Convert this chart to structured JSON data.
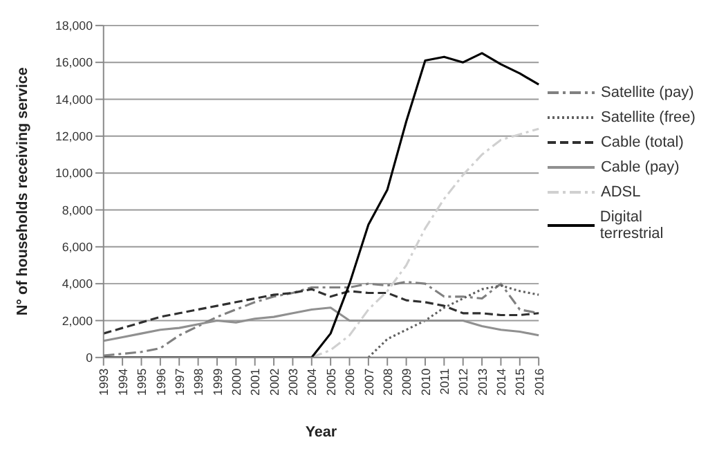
{
  "chart_data": {
    "type": "line",
    "xlabel": "Year",
    "ylabel": "N° of households receiving service",
    "categories": [
      "1993",
      "1994",
      "1995",
      "1996",
      "1997",
      "1998",
      "1999",
      "2000",
      "2001",
      "2002",
      "2003",
      "2004",
      "2005",
      "2006",
      "2007",
      "2008",
      "2009",
      "2010",
      "2011",
      "2012",
      "2013",
      "2014",
      "2015",
      "2016"
    ],
    "series": [
      {
        "name": "Satellite (pay)",
        "color": "#808080",
        "line_style": "dashdot",
        "values": [
          100,
          200,
          300,
          500,
          1200,
          1700,
          2200,
          2600,
          3000,
          3300,
          3500,
          3800,
          3800,
          3800,
          4000,
          3900,
          4100,
          4000,
          3300,
          3300,
          3200,
          4000,
          2600,
          2400
        ]
      },
      {
        "name": "Satellite (free)",
        "color": "#606060",
        "line_style": "dotted",
        "values": [
          null,
          null,
          null,
          null,
          null,
          null,
          null,
          null,
          null,
          null,
          null,
          null,
          null,
          null,
          0,
          1000,
          1500,
          2000,
          2700,
          3200,
          3700,
          3900,
          3600,
          3400
        ]
      },
      {
        "name": "Cable (total)",
        "color": "#303030",
        "line_style": "dashed",
        "values": [
          1300,
          1600,
          1900,
          2200,
          2400,
          2600,
          2800,
          3000,
          3200,
          3400,
          3500,
          3700,
          3300,
          3600,
          3500,
          3500,
          3100,
          3000,
          2800,
          2400,
          2400,
          2300,
          2300,
          2400
        ]
      },
      {
        "name": "Cable (pay)",
        "color": "#909090",
        "line_style": "solid",
        "values": [
          900,
          1100,
          1300,
          1500,
          1600,
          1800,
          2000,
          1900,
          2100,
          2200,
          2400,
          2600,
          2700,
          2000,
          2000,
          2000,
          2000,
          2000,
          2000,
          2000,
          1700,
          1500,
          1400,
          1200
        ]
      },
      {
        "name": "ADSL",
        "color": "#d0d0d0",
        "line_style": "dashdot",
        "values": [
          null,
          null,
          null,
          null,
          null,
          null,
          null,
          null,
          null,
          null,
          null,
          0,
          400,
          1200,
          2600,
          3600,
          5000,
          7000,
          8600,
          9900,
          11000,
          11800,
          12100,
          12400
        ]
      },
      {
        "name": "Digital terrestrial",
        "color": "#000000",
        "line_style": "solid",
        "values": [
          0,
          0,
          0,
          0,
          0,
          0,
          0,
          0,
          0,
          0,
          0,
          0,
          1300,
          4000,
          7200,
          9100,
          12800,
          16100,
          16300,
          16000,
          16500,
          15900,
          15400,
          14800
        ]
      }
    ],
    "ylim": [
      0,
      18000
    ],
    "yticks": [
      0,
      {
        "value": 2000,
        "label": "2,000"
      },
      {
        "value": 4000,
        "label": "4,000"
      },
      {
        "value": 6000,
        "label": "6,000"
      },
      {
        "value": 8000,
        "label": "8,000"
      },
      {
        "value": 10000,
        "label": "10,000"
      },
      {
        "value": 12000,
        "label": "12,000"
      },
      {
        "value": 14000,
        "label": "14,000"
      },
      {
        "value": 16000,
        "label": "16,000"
      },
      {
        "value": 18000,
        "label": "18,000"
      }
    ],
    "grid": "y",
    "legend": "right",
    "marker": "none"
  }
}
